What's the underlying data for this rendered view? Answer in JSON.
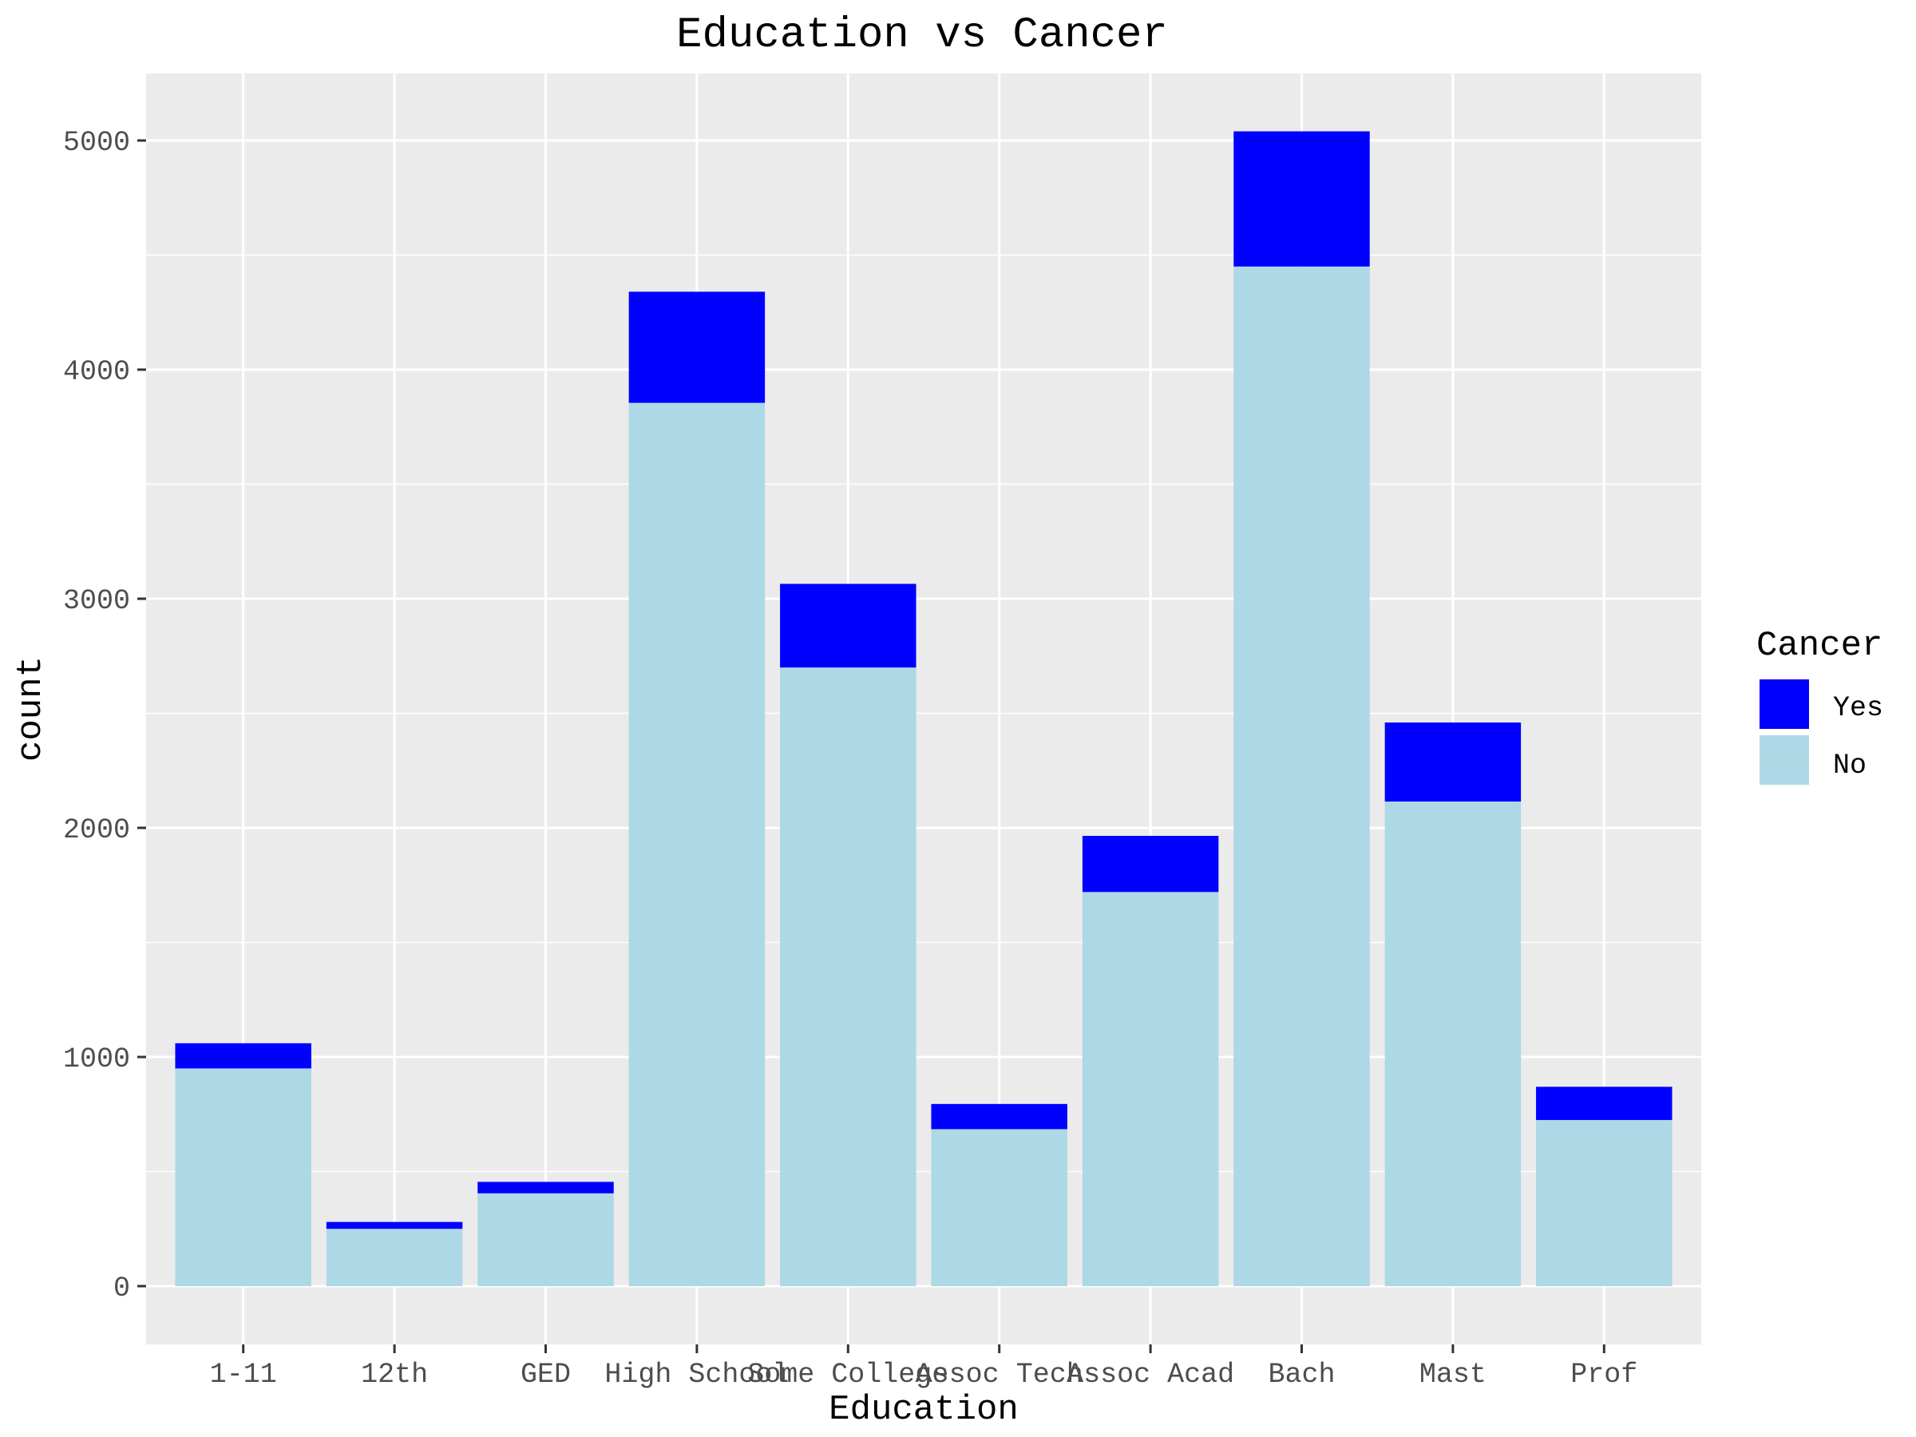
{
  "chart_data": {
    "type": "bar",
    "stacked": true,
    "title": "Education vs Cancer",
    "xlabel": "Education",
    "ylabel": "count",
    "categories": [
      "1-11",
      "12th",
      "GED",
      "High School",
      "Some College",
      "Assoc Tech",
      "Assoc Acad",
      "Bach",
      "Mast",
      "Prof"
    ],
    "series": [
      {
        "name": "No",
        "color": "#add8e6",
        "values": [
          950,
          250,
          405,
          3855,
          2700,
          685,
          1720,
          4450,
          2115,
          725
        ]
      },
      {
        "name": "Yes",
        "color": "#0000ff",
        "values": [
          110,
          30,
          50,
          485,
          365,
          110,
          245,
          590,
          345,
          145
        ]
      }
    ],
    "yticks": [
      0,
      1000,
      2000,
      3000,
      4000,
      5000
    ],
    "ylim": [
      -250,
      5300
    ],
    "grid": true,
    "legend": {
      "title": "Cancer",
      "position": "right",
      "entries": [
        {
          "label": "Yes",
          "color": "#0000ff"
        },
        {
          "label": "No",
          "color": "#add8e6"
        }
      ]
    },
    "colors": {
      "panel_background": "#ebebeb",
      "grid": "#ffffff",
      "axis_text": "#4d4d4d"
    }
  }
}
